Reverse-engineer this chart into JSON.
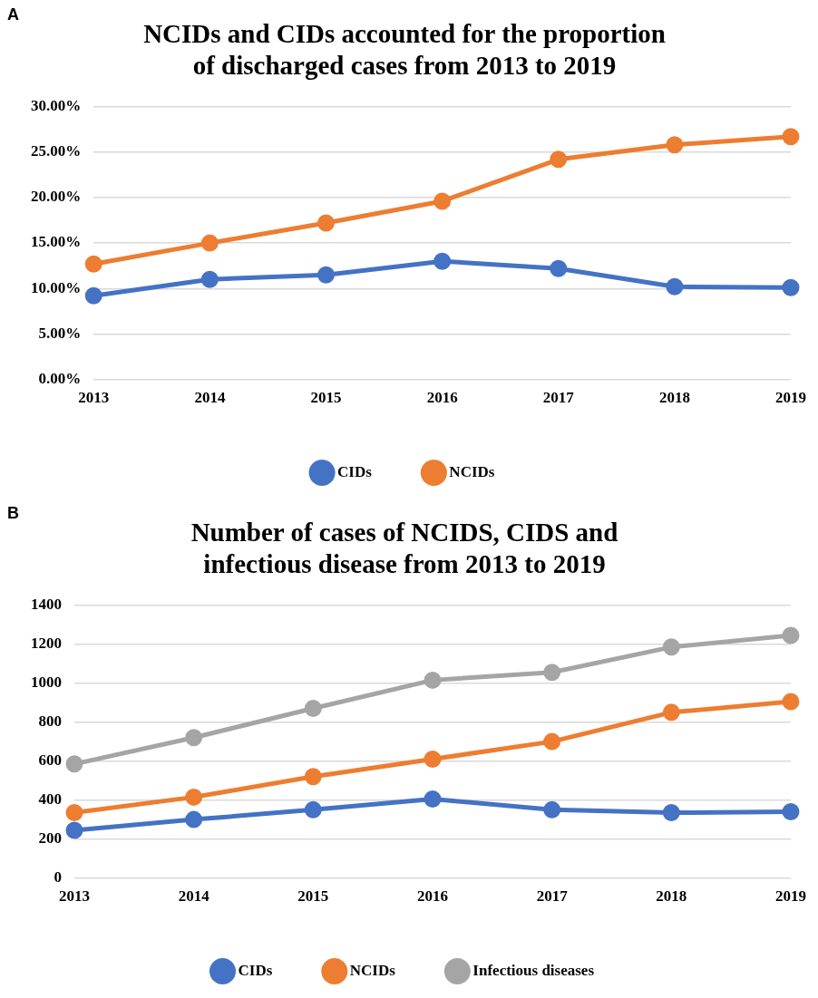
{
  "chart_data": [
    {
      "type": "line",
      "title": "NCIDs and CIDs accounted for the proportion of discharged cases from 2013 to 2019",
      "annotations": [
        "A"
      ],
      "categories": [
        "2013",
        "2014",
        "2015",
        "2016",
        "2017",
        "2018",
        "2019"
      ],
      "series": [
        {
          "name": "CIDs",
          "color": "#4472c4",
          "values": [
            9.2,
            11.0,
            11.5,
            13.0,
            12.2,
            10.2,
            10.1
          ]
        },
        {
          "name": "NCIDs",
          "color": "#ed7d31",
          "values": [
            12.7,
            15.0,
            17.2,
            19.6,
            24.2,
            25.8,
            26.7
          ]
        }
      ],
      "ylim": [
        0,
        30
      ],
      "yticks": [
        {
          "value": 0,
          "label": "0.00%"
        },
        {
          "value": 5,
          "label": "5.00%"
        },
        {
          "value": 10,
          "label": "10.00%"
        },
        {
          "value": 15,
          "label": "15.00%"
        },
        {
          "value": 20,
          "label": "20.00%"
        },
        {
          "value": 25,
          "label": "25.00%"
        },
        {
          "value": 30,
          "label": "30.00%"
        }
      ],
      "grid": "y",
      "legend": "bottom",
      "marker": "circle",
      "line_style": "solid"
    },
    {
      "type": "line",
      "title": "Number of cases of NCIDS, CIDS and infectious disease from 2013 to 2019",
      "annotations": [
        "B"
      ],
      "categories": [
        "2013",
        "2014",
        "2015",
        "2016",
        "2017",
        "2018",
        "2019"
      ],
      "series": [
        {
          "name": "CIDs",
          "color": "#4472c4",
          "values": [
            245,
            300,
            350,
            405,
            350,
            335,
            340
          ]
        },
        {
          "name": "NCIDs",
          "color": "#ed7d31",
          "values": [
            335,
            415,
            520,
            610,
            700,
            850,
            905
          ]
        },
        {
          "name": "Infectious diseases",
          "color": "#a5a5a5",
          "values": [
            585,
            720,
            870,
            1015,
            1055,
            1185,
            1245
          ]
        }
      ],
      "ylim": [
        0,
        1400
      ],
      "yticks": [
        0,
        200,
        400,
        600,
        800,
        1000,
        1200,
        1400
      ],
      "grid": "y",
      "legend": "bottom",
      "marker": "circle",
      "line_style": "solid"
    }
  ]
}
